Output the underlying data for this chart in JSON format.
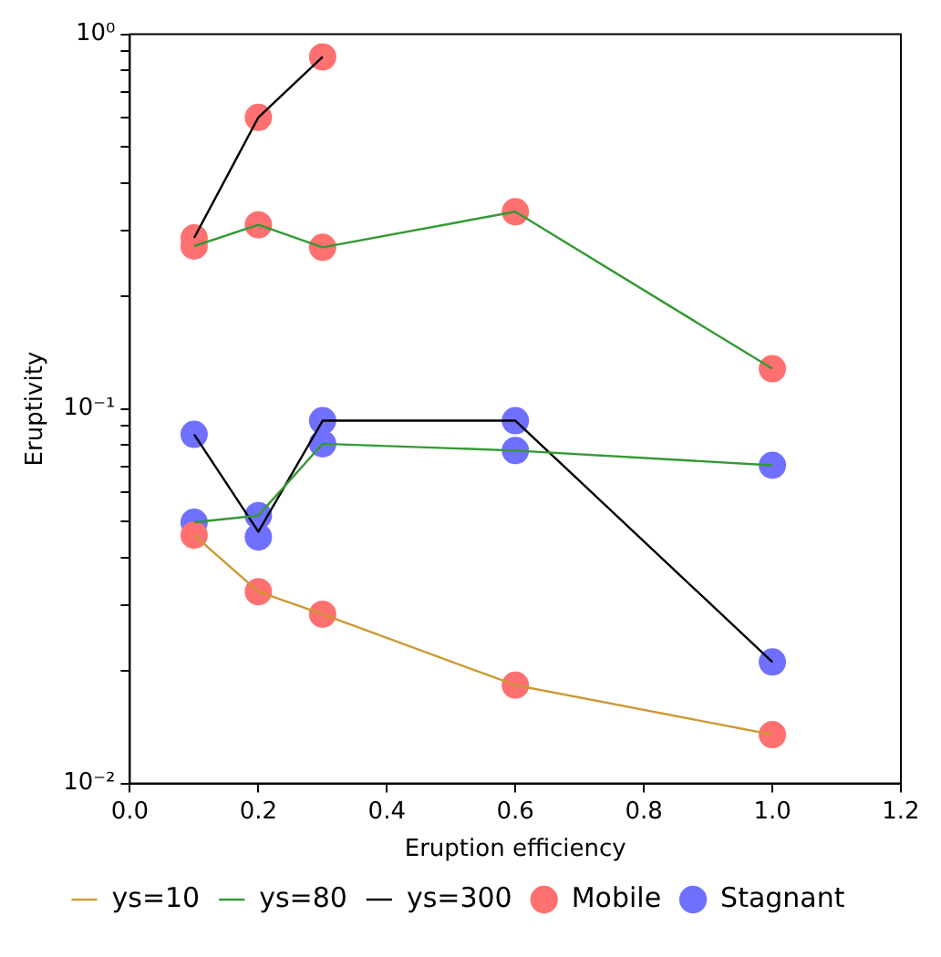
{
  "chart_data": {
    "type": "line",
    "xlabel": "Eruption efficiency",
    "ylabel": "Eruptivity",
    "log": "y",
    "grid": false,
    "legend": "bottom",
    "xlim": [
      0,
      1.2
    ],
    "xticks": [
      {
        "value": 0,
        "label": "0.0"
      },
      {
        "value": 0.2,
        "label": "0.2"
      },
      {
        "value": 0.4,
        "label": "0.4"
      },
      {
        "value": 0.6,
        "label": "0.6"
      },
      {
        "value": 0.8,
        "label": "0.8"
      },
      {
        "value": 1,
        "label": "1.0"
      },
      {
        "value": 1.2,
        "label": "1.2"
      }
    ],
    "ylim": [
      0.01,
      1
    ],
    "yticks": [
      {
        "value": 0.01,
        "label": "10⁻²"
      },
      {
        "value": 0.02,
        "label": null
      },
      {
        "value": 0.03,
        "label": null
      },
      {
        "value": 0.04,
        "label": null
      },
      {
        "value": 0.05,
        "label": null
      },
      {
        "value": 0.06,
        "label": null
      },
      {
        "value": 0.07,
        "label": null
      },
      {
        "value": 0.08,
        "label": null
      },
      {
        "value": 0.09,
        "label": null
      },
      {
        "value": 0.1,
        "label": "10⁻¹"
      },
      {
        "value": 0.2,
        "label": null
      },
      {
        "value": 0.3,
        "label": null
      },
      {
        "value": 0.4,
        "label": null
      },
      {
        "value": 0.5,
        "label": null
      },
      {
        "value": 0.6,
        "label": null
      },
      {
        "value": 0.7,
        "label": null
      },
      {
        "value": 0.8,
        "label": null
      },
      {
        "value": 0.9,
        "label": null
      },
      {
        "value": 1,
        "label": "10⁰"
      }
    ],
    "series": [
      {
        "name": "ys=10",
        "type": "line",
        "marker": "none",
        "color": "#cc9933",
        "x": [
          0.1,
          0.2,
          0.3,
          0.6,
          1.0
        ],
        "values": [
          0.046,
          0.0325,
          0.0283,
          0.0183,
          0.0135
        ]
      },
      {
        "name": "ys=80",
        "type": "line",
        "marker": "none",
        "color": "#339933",
        "x": [
          0.1,
          0.2,
          0.3,
          0.6,
          1.0
        ],
        "values": [
          0.272,
          0.31,
          0.27,
          0.336,
          0.128
        ]
      },
      {
        "type": "line",
        "marker": "none",
        "color": "#339933",
        "x": [
          0.1,
          0.2,
          0.3,
          0.6,
          1.0
        ],
        "values": [
          0.0498,
          0.0519,
          0.0807,
          0.0774,
          0.0707
        ]
      },
      {
        "name": "ys=300",
        "type": "line",
        "marker": "none",
        "color": "#000000",
        "x": [
          0.1,
          0.2,
          0.3
        ],
        "values": [
          0.286,
          0.6,
          0.87
        ]
      },
      {
        "type": "line",
        "marker": "none",
        "color": "#000000",
        "x": [
          0.1,
          0.2,
          0.3,
          0.6,
          1.0
        ],
        "values": [
          0.0855,
          0.047,
          0.093,
          0.093,
          0.0211
        ]
      },
      {
        "name": "Mobile",
        "type": "scatter",
        "marker": "circle",
        "color": "#ff7070",
        "x": [
          0.1,
          0.2,
          0.3,
          0.6,
          1.0,
          0.1,
          0.2,
          0.3,
          0.6,
          1.0,
          0.1,
          0.2,
          0.3
        ],
        "values": [
          0.046,
          0.0325,
          0.0283,
          0.0183,
          0.0135,
          0.272,
          0.31,
          0.27,
          0.336,
          0.128,
          0.286,
          0.6,
          0.87
        ]
      },
      {
        "name": "Stagnant",
        "type": "scatter",
        "marker": "circle",
        "color": "#7070ff",
        "x": [
          0.1,
          0.2,
          0.3,
          0.6,
          1.0,
          0.1,
          0.2,
          0.3,
          0.6,
          1.0
        ],
        "values": [
          0.0498,
          0.0519,
          0.0807,
          0.0774,
          0.0707,
          0.0855,
          0.0455,
          0.093,
          0.093,
          0.0211
        ]
      }
    ]
  }
}
